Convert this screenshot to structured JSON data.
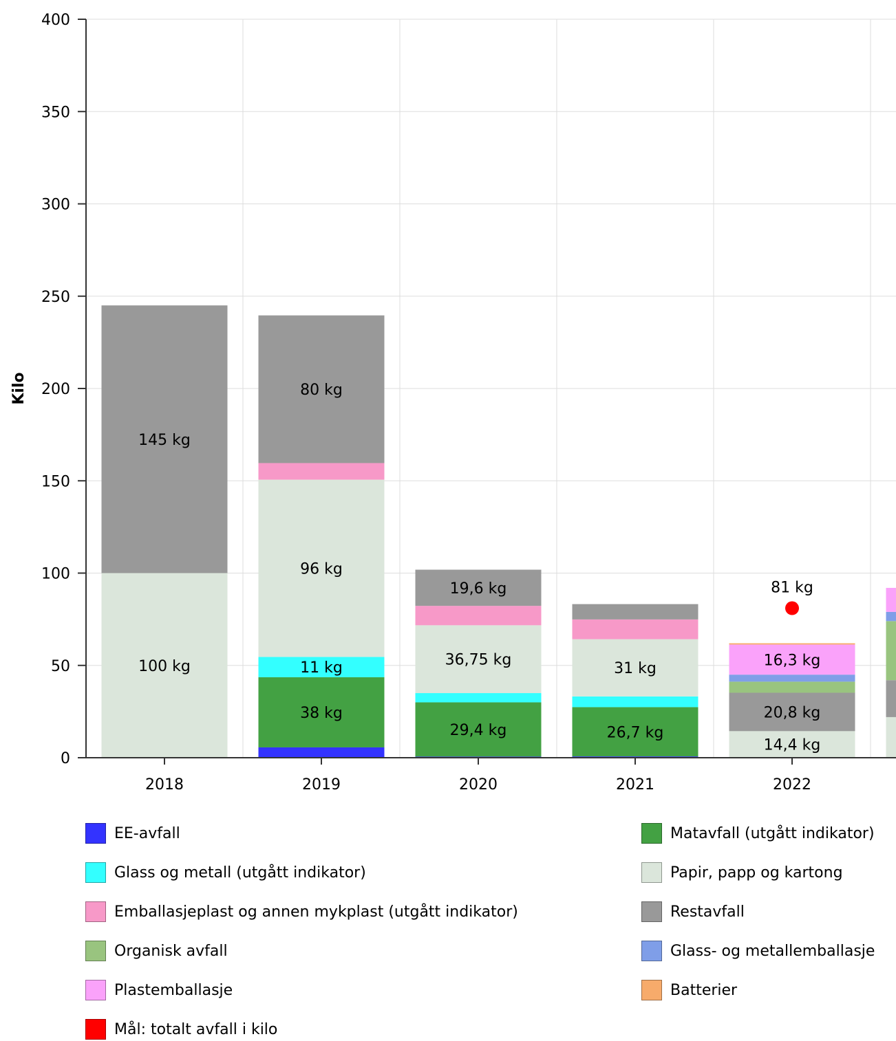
{
  "chart_data": {
    "type": "bar",
    "stacked": true,
    "ylabel": "Kilo",
    "ylim": [
      0,
      400
    ],
    "yticks": [
      0,
      50,
      100,
      150,
      200,
      250,
      300,
      350,
      400
    ],
    "grid": true,
    "legend_position": "bottom",
    "categories": [
      "2018",
      "2019",
      "2020",
      "2021",
      "2022",
      ""
    ],
    "series": [
      {
        "name": "EE-avfall",
        "color": "#3333ff",
        "values": [
          0,
          5.6,
          0.6,
          0.7,
          0,
          0
        ]
      },
      {
        "name": "Matavfall (utgått indikator)",
        "color": "#43a143",
        "values": [
          0,
          38,
          29.4,
          26.7,
          0,
          0
        ]
      },
      {
        "name": "Glass og metall (utgått indikator)",
        "color": "#33ffff",
        "values": [
          0,
          11,
          5,
          5.8,
          0,
          0
        ]
      },
      {
        "name": "Papir, papp og kartong",
        "color": "#dbe6db",
        "values": [
          100,
          96,
          36.75,
          31,
          14.4,
          22
        ]
      },
      {
        "name": "Emballasjeplast og annen mykplast (utgått indikator)",
        "color": "#f799c8",
        "values": [
          0,
          9,
          10.5,
          10.7,
          0,
          0
        ]
      },
      {
        "name": "Restavfall",
        "color": "#999999",
        "values": [
          145,
          80,
          19.6,
          8.3,
          20.8,
          20
        ]
      },
      {
        "name": "Organisk avfall",
        "color": "#99c47f",
        "values": [
          0,
          0,
          0,
          0,
          6,
          32
        ]
      },
      {
        "name": "Glass- og metallemballasje",
        "color": "#7f9ee8",
        "values": [
          0,
          0,
          0,
          0,
          3.8,
          5
        ]
      },
      {
        "name": "Plastemballasje",
        "color": "#faa2fa",
        "values": [
          0,
          0,
          0,
          0,
          16.3,
          13
        ]
      },
      {
        "name": "Batterier",
        "color": "#f7ab6b",
        "values": [
          0,
          0,
          0,
          0,
          0.7,
          0
        ]
      }
    ],
    "bar_labels": [
      {
        "category": "2018",
        "series": "Papir, papp og kartong",
        "text": "100 kg"
      },
      {
        "category": "2018",
        "series": "Restavfall",
        "text": "145 kg"
      },
      {
        "category": "2019",
        "series": "Matavfall (utgått indikator)",
        "text": "38 kg"
      },
      {
        "category": "2019",
        "series": "Glass og metall (utgått indikator)",
        "text": "11 kg"
      },
      {
        "category": "2019",
        "series": "Papir, papp og kartong",
        "text": "96 kg"
      },
      {
        "category": "2019",
        "series": "Restavfall",
        "text": "80 kg"
      },
      {
        "category": "2020",
        "series": "Matavfall (utgått indikator)",
        "text": "29,4 kg"
      },
      {
        "category": "2020",
        "series": "Papir, papp og kartong",
        "text": "36,75 kg"
      },
      {
        "category": "2020",
        "series": "Restavfall",
        "text": "19,6 kg"
      },
      {
        "category": "2021",
        "series": "Matavfall (utgått indikator)",
        "text": "26,7 kg"
      },
      {
        "category": "2021",
        "series": "Papir, papp og kartong",
        "text": "31 kg"
      },
      {
        "category": "2022",
        "series": "Papir, papp og kartong",
        "text": "14,4 kg"
      },
      {
        "category": "2022",
        "series": "Restavfall",
        "text": "20,8 kg"
      },
      {
        "category": "2022",
        "series": "Plastemballasje",
        "text": "16,3 kg"
      }
    ],
    "target": {
      "name": "Mål: totalt avfall i kilo",
      "color": "#ff0000",
      "category": "2022",
      "value": 81,
      "label": "81 kg"
    }
  }
}
